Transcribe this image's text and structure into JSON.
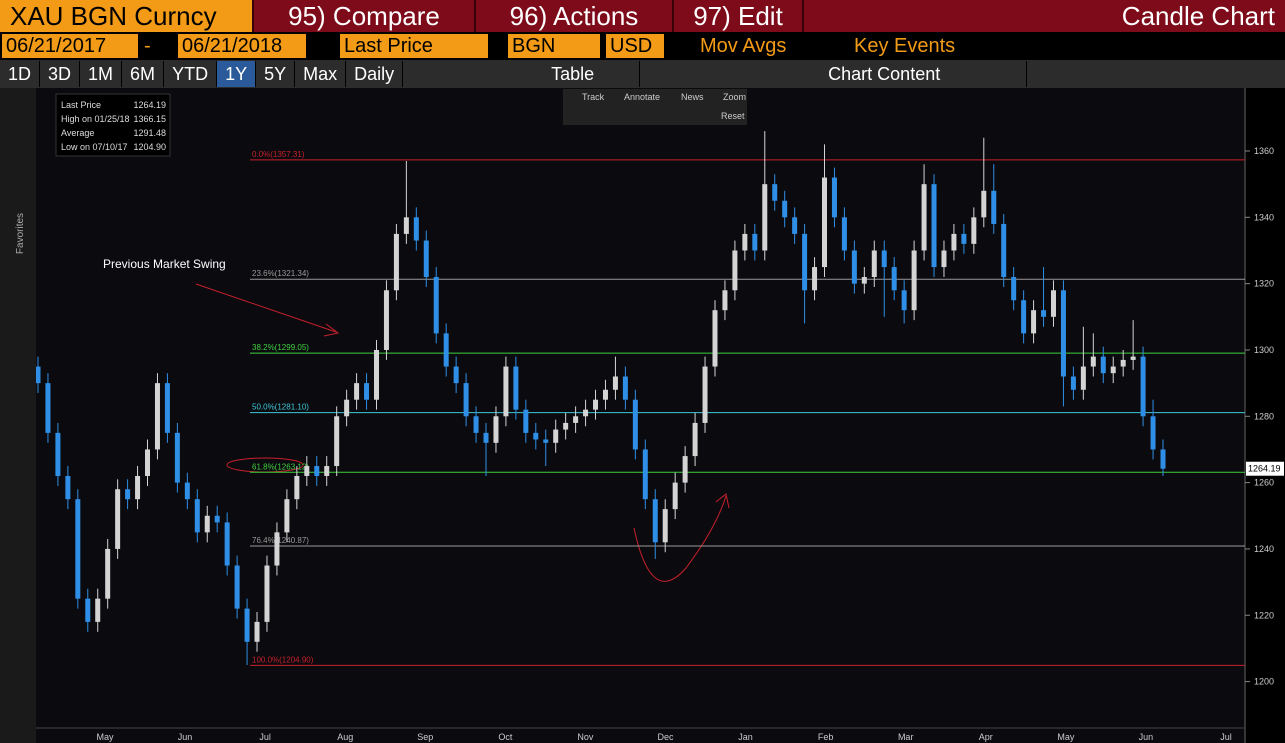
{
  "toolbar": {
    "row1": [
      "XAU BGN Curncy",
      "95) Compare",
      "96) Actions",
      "97) Edit",
      "Candle Chart"
    ],
    "row2": {
      "start": "06/21/2017",
      "dash": "-",
      "end": "06/21/2018",
      "field": "Last Price",
      "source": "BGN",
      "currency": "USD",
      "studies": "Mov Avgs",
      "events": "Key Events"
    },
    "row3": [
      "1D",
      "3D",
      "1M",
      "6M",
      "YTD",
      "1Y",
      "5Y",
      "Max",
      "Daily"
    ],
    "table": "Table",
    "content": "Chart Content",
    "chart_tools": [
      "Track",
      "Annotate",
      "News",
      "Zoom"
    ],
    "reset": "Reset",
    "favorites": "Favorites"
  },
  "chart_data": {
    "type": "candlestick",
    "annotation": "Previous Market Swing",
    "stats": [
      {
        "name": "Last Price",
        "value": 1264.19
      },
      {
        "name": "High on 01/25/18",
        "value": 1366.15
      },
      {
        "name": "Average",
        "value": 1291.48
      },
      {
        "name": "Low on 07/10/17",
        "value": 1204.9,
        "value_label": "1204.90"
      }
    ],
    "fib_levels": [
      {
        "value": 1357.31,
        "label": "0.0%(1357.31)",
        "color": "#c8202c"
      },
      {
        "value": 1321.34,
        "label": "23.6%(1321.34)",
        "color": "#9a9a9a"
      },
      {
        "value": 1299.05,
        "label": "38.2%(1299.05)",
        "color": "#3fcf3f"
      },
      {
        "value": 1281.1,
        "label": "50.0%(1281.10)",
        "color": "#3fc6d8"
      },
      {
        "value": 1263.12,
        "label": "61.8%(1263.12)",
        "color": "#3fcf3f"
      },
      {
        "value": 1240.87,
        "label": "76.4%(1240.87)",
        "color": "#9a9a9a"
      },
      {
        "value": 1204.9,
        "label": "100.0%(1204.90)",
        "color": "#c8202c"
      }
    ],
    "x_labels": [
      "May",
      "Jun",
      "Jul",
      "Aug",
      "Sep",
      "Oct",
      "Nov",
      "Dec",
      "Jan",
      "Feb",
      "Mar",
      "Apr",
      "May",
      "Jun",
      "Jul"
    ],
    "ylim": [
      1186,
      1379
    ],
    "yticks": [
      1200,
      1220,
      1240,
      1260,
      1280,
      1300,
      1320,
      1340,
      1360
    ],
    "up_color": "#d4d4d4",
    "down_color": "#2f8fe6",
    "ohlc": [
      [
        1295,
        1298,
        1287,
        1290
      ],
      [
        1290,
        1293,
        1272,
        1275
      ],
      [
        1275,
        1278,
        1259,
        1262
      ],
      [
        1262,
        1265,
        1252,
        1255
      ],
      [
        1255,
        1258,
        1222,
        1225
      ],
      [
        1225,
        1228,
        1215,
        1218
      ],
      [
        1218,
        1228,
        1215,
        1225
      ],
      [
        1225,
        1243,
        1222,
        1240
      ],
      [
        1240,
        1261,
        1237,
        1258
      ],
      [
        1258,
        1261,
        1252,
        1255
      ],
      [
        1255,
        1265,
        1252,
        1262
      ],
      [
        1262,
        1273,
        1259,
        1270
      ],
      [
        1270,
        1293,
        1267,
        1290
      ],
      [
        1290,
        1293,
        1272,
        1275
      ],
      [
        1275,
        1278,
        1257,
        1260
      ],
      [
        1260,
        1263,
        1252,
        1255
      ],
      [
        1255,
        1258,
        1242,
        1245
      ],
      [
        1245,
        1253,
        1242,
        1250
      ],
      [
        1250,
        1253,
        1245,
        1248
      ],
      [
        1248,
        1251,
        1232,
        1235
      ],
      [
        1235,
        1238,
        1219,
        1222
      ],
      [
        1222,
        1225,
        1205,
        1212
      ],
      [
        1212,
        1221,
        1209,
        1218
      ],
      [
        1218,
        1238,
        1215,
        1235
      ],
      [
        1235,
        1248,
        1232,
        1245
      ],
      [
        1245,
        1258,
        1242,
        1255
      ],
      [
        1255,
        1265,
        1252,
        1262
      ],
      [
        1262,
        1268,
        1259,
        1265
      ],
      [
        1265,
        1268,
        1259,
        1262
      ],
      [
        1262,
        1268,
        1259,
        1265
      ],
      [
        1265,
        1283,
        1262,
        1280
      ],
      [
        1280,
        1288,
        1277,
        1285
      ],
      [
        1285,
        1293,
        1282,
        1290
      ],
      [
        1290,
        1293,
        1282,
        1285
      ],
      [
        1285,
        1303,
        1282,
        1300
      ],
      [
        1300,
        1321,
        1297,
        1318
      ],
      [
        1318,
        1338,
        1315,
        1335
      ],
      [
        1335,
        1357,
        1332,
        1340
      ],
      [
        1340,
        1343,
        1330,
        1333
      ],
      [
        1333,
        1336,
        1319,
        1322
      ],
      [
        1322,
        1325,
        1302,
        1305
      ],
      [
        1305,
        1308,
        1292,
        1295
      ],
      [
        1295,
        1298,
        1287,
        1290
      ],
      [
        1290,
        1293,
        1277,
        1280
      ],
      [
        1280,
        1283,
        1272,
        1275
      ],
      [
        1275,
        1278,
        1262,
        1272
      ],
      [
        1272,
        1283,
        1269,
        1280
      ],
      [
        1280,
        1298,
        1277,
        1295
      ],
      [
        1295,
        1298,
        1279,
        1282
      ],
      [
        1282,
        1285,
        1272,
        1275
      ],
      [
        1275,
        1278,
        1270,
        1273
      ],
      [
        1273,
        1276,
        1265,
        1272
      ],
      [
        1272,
        1279,
        1269,
        1276
      ],
      [
        1276,
        1281,
        1273,
        1278
      ],
      [
        1278,
        1283,
        1275,
        1280
      ],
      [
        1280,
        1285,
        1277,
        1282
      ],
      [
        1282,
        1288,
        1279,
        1285
      ],
      [
        1285,
        1291,
        1282,
        1288
      ],
      [
        1288,
        1298,
        1285,
        1292
      ],
      [
        1292,
        1295,
        1282,
        1285
      ],
      [
        1285,
        1288,
        1267,
        1270
      ],
      [
        1270,
        1273,
        1252,
        1255
      ],
      [
        1255,
        1258,
        1237,
        1242
      ],
      [
        1242,
        1255,
        1239,
        1252
      ],
      [
        1252,
        1263,
        1249,
        1260
      ],
      [
        1260,
        1271,
        1257,
        1268
      ],
      [
        1268,
        1281,
        1265,
        1278
      ],
      [
        1278,
        1298,
        1275,
        1295
      ],
      [
        1295,
        1315,
        1292,
        1312
      ],
      [
        1312,
        1321,
        1309,
        1318
      ],
      [
        1318,
        1333,
        1315,
        1330
      ],
      [
        1330,
        1338,
        1327,
        1335
      ],
      [
        1335,
        1338,
        1327,
        1330
      ],
      [
        1330,
        1366,
        1327,
        1350
      ],
      [
        1350,
        1353,
        1342,
        1345
      ],
      [
        1345,
        1348,
        1337,
        1340
      ],
      [
        1340,
        1343,
        1332,
        1335
      ],
      [
        1335,
        1338,
        1308,
        1318
      ],
      [
        1318,
        1328,
        1315,
        1325
      ],
      [
        1325,
        1362,
        1322,
        1352
      ],
      [
        1352,
        1355,
        1337,
        1340
      ],
      [
        1340,
        1343,
        1327,
        1330
      ],
      [
        1330,
        1333,
        1317,
        1320
      ],
      [
        1320,
        1325,
        1317,
        1322
      ],
      [
        1322,
        1333,
        1319,
        1330
      ],
      [
        1330,
        1333,
        1310,
        1325
      ],
      [
        1325,
        1328,
        1315,
        1318
      ],
      [
        1318,
        1321,
        1308,
        1312
      ],
      [
        1312,
        1333,
        1309,
        1330
      ],
      [
        1330,
        1356,
        1327,
        1350
      ],
      [
        1350,
        1353,
        1322,
        1325
      ],
      [
        1325,
        1333,
        1322,
        1330
      ],
      [
        1330,
        1338,
        1327,
        1335
      ],
      [
        1335,
        1338,
        1329,
        1332
      ],
      [
        1332,
        1343,
        1329,
        1340
      ],
      [
        1340,
        1364,
        1337,
        1348
      ],
      [
        1348,
        1356,
        1335,
        1338
      ],
      [
        1338,
        1341,
        1319,
        1322
      ],
      [
        1322,
        1325,
        1312,
        1315
      ],
      [
        1315,
        1318,
        1302,
        1305
      ],
      [
        1305,
        1315,
        1302,
        1312
      ],
      [
        1312,
        1325,
        1307,
        1310
      ],
      [
        1310,
        1321,
        1307,
        1318
      ],
      [
        1318,
        1321,
        1283,
        1292
      ],
      [
        1292,
        1295,
        1285,
        1288
      ],
      [
        1288,
        1307,
        1285,
        1295
      ],
      [
        1295,
        1305,
        1292,
        1298
      ],
      [
        1298,
        1301,
        1290,
        1293
      ],
      [
        1293,
        1298,
        1290,
        1295
      ],
      [
        1295,
        1300,
        1292,
        1297
      ],
      [
        1297,
        1309,
        1294,
        1298
      ],
      [
        1298,
        1301,
        1277,
        1280
      ],
      [
        1280,
        1285,
        1267,
        1270
      ],
      [
        1270,
        1273,
        1262,
        1264.19
      ]
    ]
  }
}
